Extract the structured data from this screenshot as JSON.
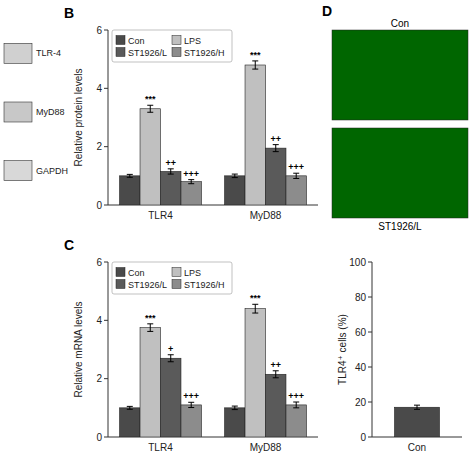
{
  "chart_data": [
    {
      "type": "blot",
      "annotations": [
        {
          "text": "TLR-4"
        },
        {
          "text": "MyD88"
        },
        {
          "text": "GAPDH"
        }
      ]
    },
    {
      "type": "bar",
      "ylabel": "Relative protein levels",
      "categories": [
        "TLR4",
        "MyD88"
      ],
      "series": [
        {
          "name": "Con",
          "color": "#4a4a4a",
          "values": [
            1.0,
            1.0
          ],
          "errors": [
            0.05,
            0.06
          ]
        },
        {
          "name": "LPS",
          "color": "#c0c0c0",
          "values": [
            3.3,
            4.8
          ],
          "errors": [
            0.12,
            0.14
          ]
        },
        {
          "name": "ST1926/L",
          "color": "#5a5a5a",
          "values": [
            1.15,
            1.95
          ],
          "errors": [
            0.09,
            0.12
          ]
        },
        {
          "name": "ST1926/H",
          "color": "#8c8c8c",
          "values": [
            0.8,
            1.0
          ],
          "errors": [
            0.07,
            0.09
          ]
        }
      ],
      "ylim": [
        0,
        6
      ],
      "yticks": [
        0,
        2,
        4,
        6
      ],
      "legend": "upper left",
      "annotations": [
        {
          "text": "B"
        },
        {
          "text": "***",
          "category": "TLR4",
          "series": "LPS"
        },
        {
          "text": "++",
          "category": "TLR4",
          "series": "ST1926/L"
        },
        {
          "text": "+++",
          "category": "TLR4",
          "series": "ST1926/H"
        },
        {
          "text": "***",
          "category": "MyD88",
          "series": "LPS"
        },
        {
          "text": "++",
          "category": "MyD88",
          "series": "ST1926/L"
        },
        {
          "text": "+++",
          "category": "MyD88",
          "series": "ST1926/H"
        }
      ]
    },
    {
      "type": "bar",
      "ylabel": "Relative mRNA levels",
      "categories": [
        "TLR4",
        "MyD88"
      ],
      "series": [
        {
          "name": "Con",
          "color": "#4a4a4a",
          "values": [
            1.0,
            1.0
          ],
          "errors": [
            0.05,
            0.06
          ]
        },
        {
          "name": "LPS",
          "color": "#c0c0c0",
          "values": [
            3.75,
            4.4
          ],
          "errors": [
            0.13,
            0.15
          ]
        },
        {
          "name": "ST1926/L",
          "color": "#5a5a5a",
          "values": [
            2.7,
            2.15
          ],
          "errors": [
            0.12,
            0.12
          ]
        },
        {
          "name": "ST1926/H",
          "color": "#8c8c8c",
          "values": [
            1.1,
            1.1
          ],
          "errors": [
            0.09,
            0.1
          ]
        }
      ],
      "ylim": [
        0,
        6
      ],
      "yticks": [
        0,
        2,
        4,
        6
      ],
      "legend": "upper left",
      "annotations": [
        {
          "text": "C"
        },
        {
          "text": "***",
          "category": "TLR4",
          "series": "LPS"
        },
        {
          "text": "+",
          "category": "TLR4",
          "series": "ST1926/L"
        },
        {
          "text": "+++",
          "category": "TLR4",
          "series": "ST1926/H"
        },
        {
          "text": "***",
          "category": "MyD88",
          "series": "LPS"
        },
        {
          "text": "++",
          "category": "MyD88",
          "series": "ST1926/L"
        },
        {
          "text": "+++",
          "category": "MyD88",
          "series": "ST1926/H"
        }
      ]
    },
    {
      "type": "image",
      "color": "#006600",
      "annotations": [
        {
          "text": "D"
        },
        {
          "text": "Con"
        },
        {
          "text": "ST1926/L"
        }
      ]
    },
    {
      "type": "bar",
      "ylabel": "TLR4⁺ cells (%)",
      "categories": [
        "Con"
      ],
      "values": [
        17.0
      ],
      "errors": [
        1.2
      ],
      "color": "#4a4a4a",
      "ylim": [
        0,
        100
      ],
      "yticks": [
        0,
        20,
        40,
        60,
        80,
        100
      ]
    }
  ]
}
